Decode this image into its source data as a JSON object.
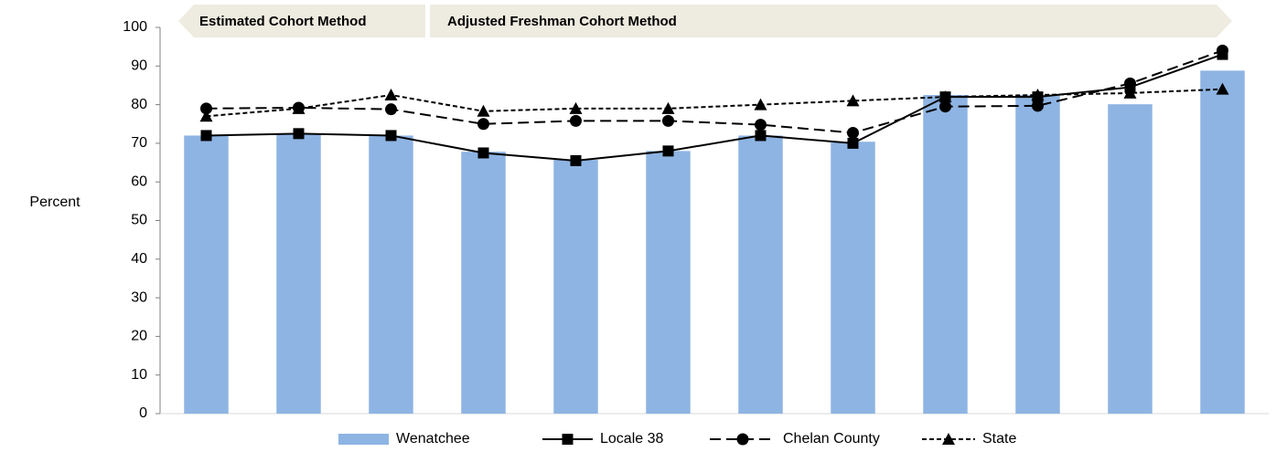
{
  "chart_data": {
    "type": "bar-line",
    "annotations": [
      "Estimated Cohort Method",
      "Adjusted Freshman Cohort Method"
    ],
    "ylabel": "Percent",
    "categories": [
      null,
      null,
      null,
      null,
      null,
      null,
      null,
      null,
      null,
      null,
      null,
      null
    ],
    "ylim": [
      0,
      100
    ],
    "yticks": [
      0,
      10,
      20,
      30,
      40,
      50,
      60,
      70,
      80,
      90,
      100
    ],
    "series": [
      {
        "name": "Wenatchee",
        "type": "bar",
        "color": "#8eb4e3",
        "values": [
          72,
          72.5,
          72,
          67.8,
          65.7,
          68,
          72,
          70.4,
          82.5,
          82.5,
          80.1,
          88.8
        ]
      },
      {
        "name": "Locale 38",
        "type": "line",
        "color": "#000000",
        "dash": "solid",
        "marker": "square",
        "values": [
          72,
          72.5,
          72,
          67.5,
          65.5,
          68,
          72,
          70,
          82,
          82,
          84.5,
          93
        ]
      },
      {
        "name": "Chelan County",
        "type": "line",
        "color": "#000000",
        "dash": "long",
        "marker": "circle",
        "values": [
          79,
          79.2,
          78.8,
          75,
          75.8,
          75.8,
          74.8,
          72.7,
          79.5,
          79.7,
          85.5,
          94
        ]
      },
      {
        "name": "State",
        "type": "line",
        "color": "#000000",
        "dash": "short",
        "marker": "triangle",
        "values": [
          77,
          79,
          82.5,
          78.3,
          79,
          79,
          80,
          81,
          82,
          82.5,
          83,
          84
        ]
      }
    ]
  }
}
